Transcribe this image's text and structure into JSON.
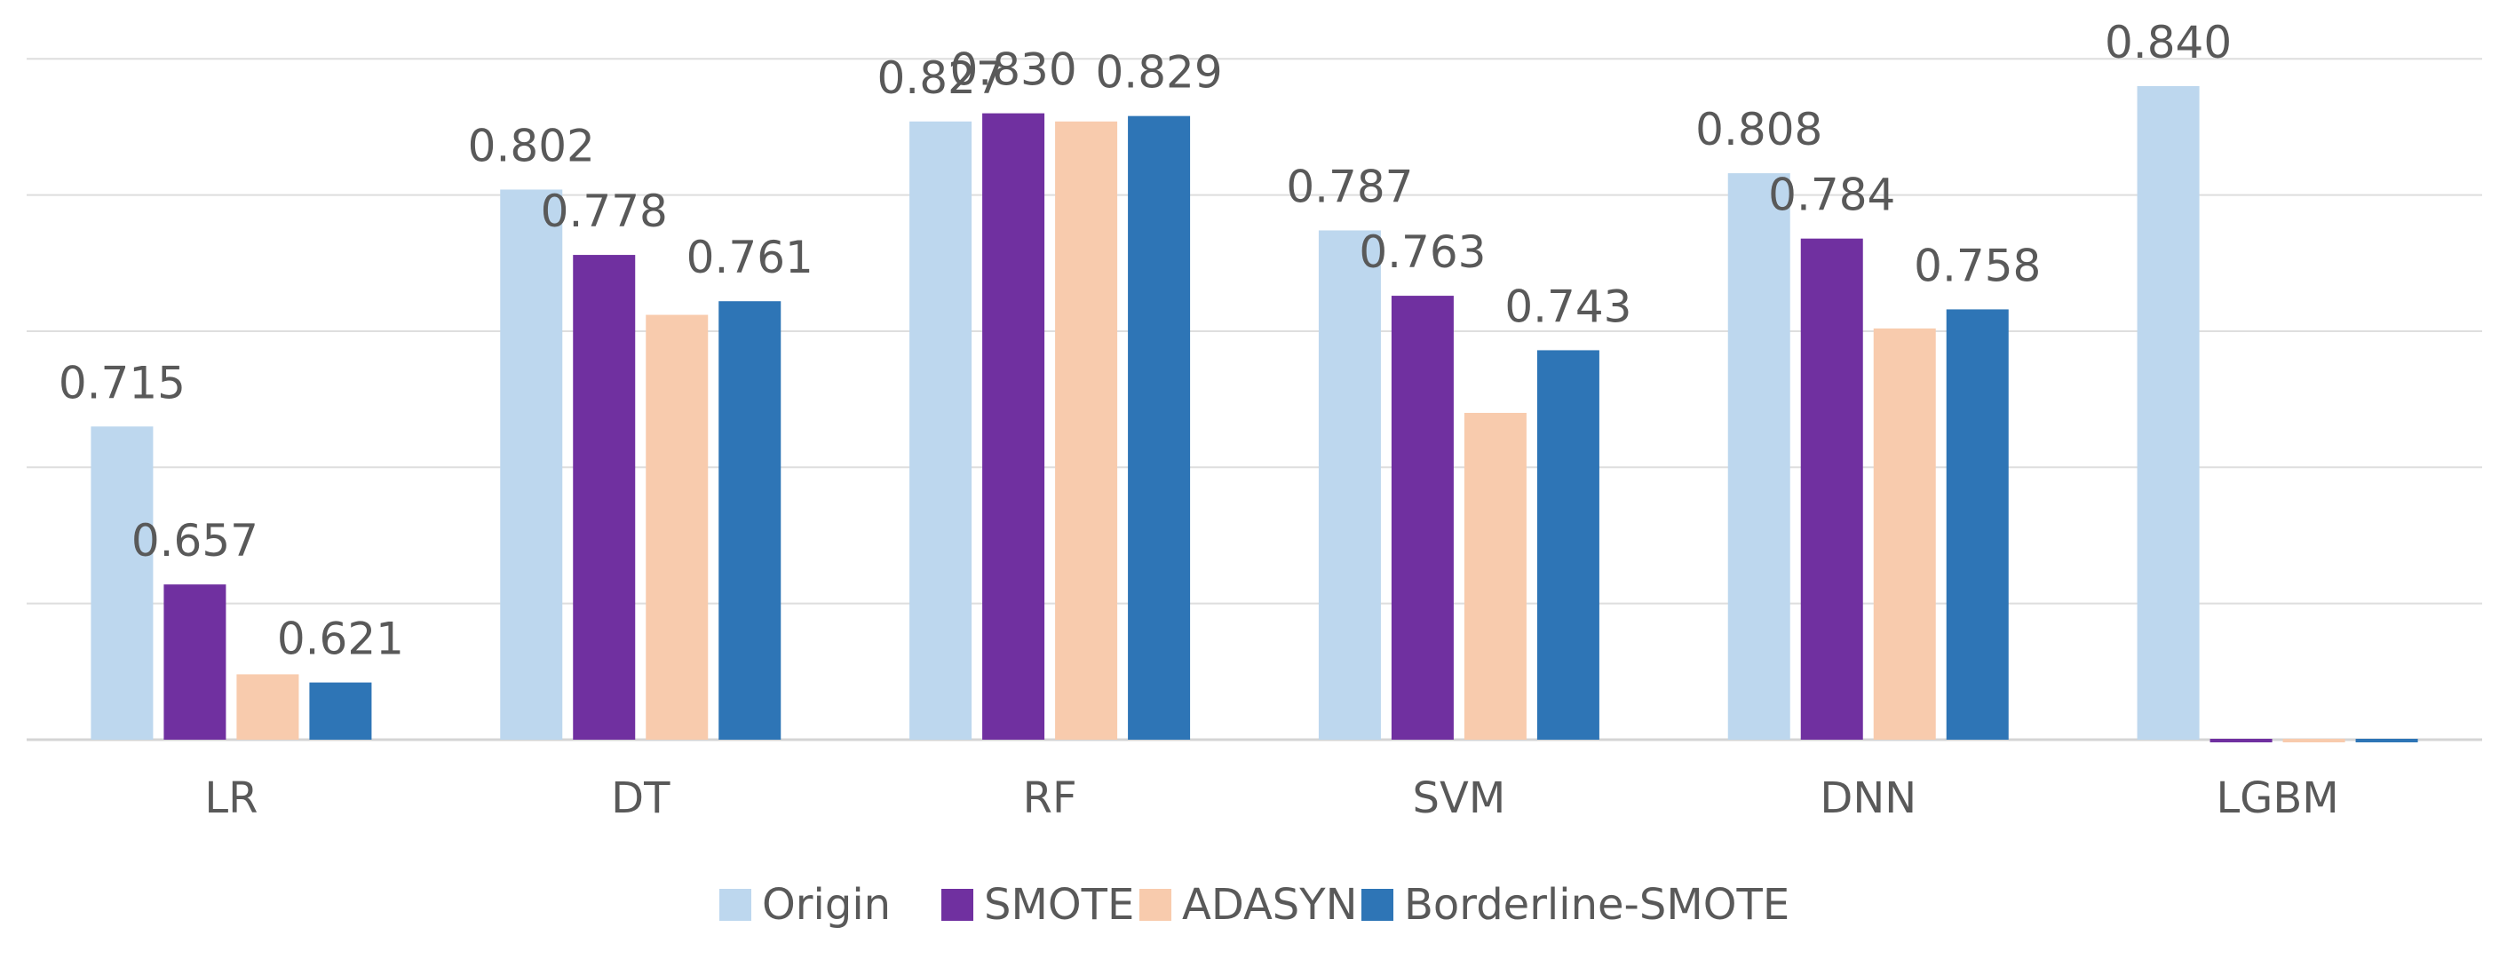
{
  "chart_data": {
    "type": "bar",
    "title": "",
    "xlabel": "",
    "ylabel": "",
    "ylim": [
      0.6,
      0.85
    ],
    "grid": true,
    "legend_position": "bottom",
    "categories": [
      "LR",
      "DT",
      "RF",
      "SVM",
      "DNN",
      "LGBM"
    ],
    "series": [
      {
        "name": "Origin",
        "color": "#BDD7EE",
        "values": [
          0.715,
          0.802,
          0.827,
          0.787,
          0.808,
          0.84
        ],
        "labels": [
          "0.715",
          "0.802",
          "0.827",
          "0.787",
          "0.808",
          "0.840"
        ]
      },
      {
        "name": "SMOTE",
        "color": "#7030A0",
        "values": [
          0.657,
          0.778,
          0.83,
          0.763,
          0.784,
          0.599
        ],
        "labels": [
          "0.657",
          "0.778",
          "0.830",
          "0.763",
          "0.784",
          ""
        ]
      },
      {
        "name": "ADASYN",
        "color": "#F8CBAD",
        "values": [
          0.624,
          0.756,
          0.827,
          0.72,
          0.751,
          0.599
        ],
        "labels": [
          "",
          "",
          "",
          "",
          "",
          ""
        ]
      },
      {
        "name": "Borderline-SMOTE",
        "color": "#2E75B6",
        "values": [
          0.621,
          0.761,
          0.829,
          0.743,
          0.758,
          0.599
        ],
        "labels": [
          "0.621",
          "0.761",
          "0.829",
          "0.743",
          "0.758",
          ""
        ]
      }
    ]
  }
}
